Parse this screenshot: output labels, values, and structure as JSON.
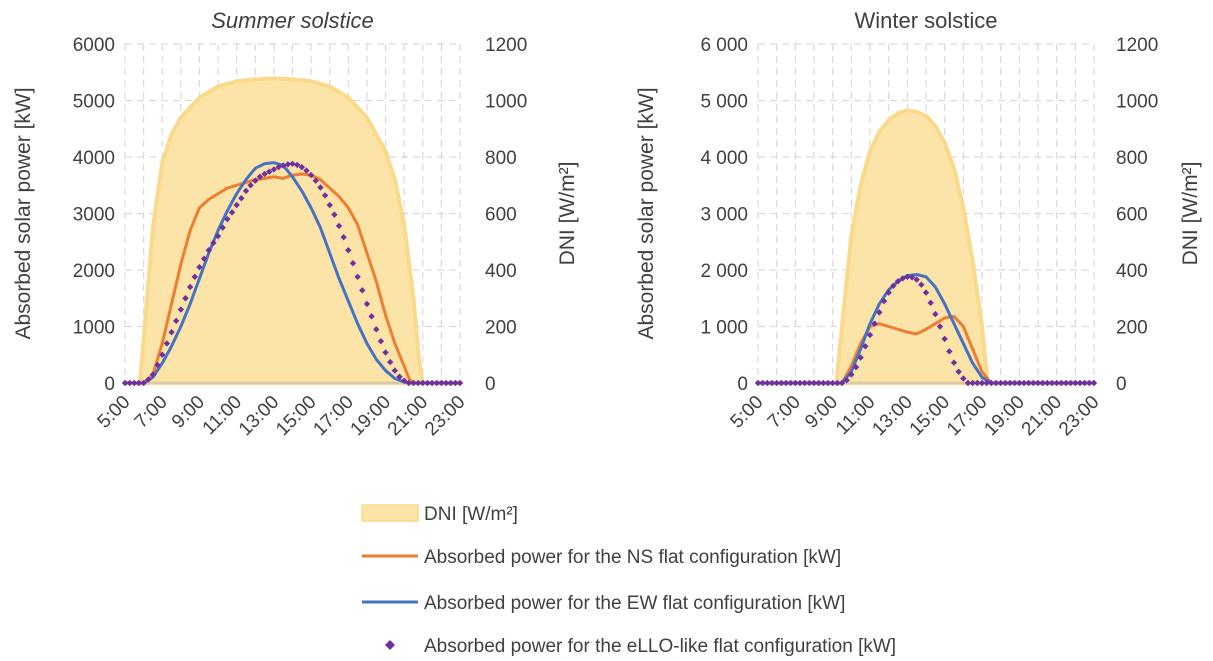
{
  "colors": {
    "dni_fill": "#FCE4A8",
    "dni_line": "#FAD98A",
    "ns": "#ED7D31",
    "ew": "#4472C4",
    "ello": "#7030A0",
    "grid": "#D9D9D9",
    "axis": "#BFBFBF"
  },
  "x_ticks": [
    "5:00",
    "7:00",
    "9:00",
    "11:00",
    "13:00",
    "15:00",
    "17:00",
    "19:00",
    "21:00",
    "23:00"
  ],
  "legend": {
    "items": [
      {
        "key": "dni",
        "label": "DNI [W/m²]"
      },
      {
        "key": "ns",
        "label": "Absorbed power for the NS flat configuration [kW]"
      },
      {
        "key": "ew",
        "label": "Absorbed power for the EW flat configuration [kW]"
      },
      {
        "key": "ello",
        "label": "Absorbed power for the eLLO-like flat configuration [kW]"
      }
    ]
  },
  "chart_data": [
    {
      "type": "line",
      "title": "Summer solstice",
      "title_italic": true,
      "ylabel": "Absorbed solar power [kW]",
      "y2label": "DNI [W/m²]",
      "ylim": [
        0,
        6000
      ],
      "y_ticks": [
        "0",
        "1000",
        "2000",
        "3000",
        "4000",
        "5000",
        "6000"
      ],
      "y2lim": [
        0,
        1200
      ],
      "y2_ticks": [
        "0",
        "200",
        "400",
        "600",
        "800",
        "1000",
        "1200"
      ],
      "xlim": [
        5,
        23
      ],
      "grid": true,
      "series": [
        {
          "name": "DNI [W/m²]",
          "type": "area",
          "axis": "y2",
          "x": [
            5,
            5.5,
            5.8,
            6,
            6.5,
            7,
            7.5,
            8,
            9,
            10,
            11,
            12,
            13,
            14,
            15,
            16,
            17,
            18,
            19,
            19.5,
            20,
            20.5,
            20.8,
            21,
            21.5,
            23
          ],
          "y": [
            0,
            0,
            0,
            150,
            550,
            780,
            880,
            940,
            1010,
            1050,
            1068,
            1075,
            1078,
            1075,
            1068,
            1050,
            1010,
            940,
            820,
            720,
            560,
            300,
            80,
            0,
            0,
            0
          ]
        },
        {
          "name": "Absorbed power for the NS flat configuration [kW]",
          "type": "line",
          "axis": "y",
          "x": [
            5,
            6,
            6.5,
            7,
            7.5,
            8,
            8.5,
            9,
            9.5,
            10,
            10.5,
            11,
            11.5,
            12,
            12.5,
            13,
            13.5,
            14,
            14.5,
            15,
            15.5,
            16,
            16.5,
            17,
            17.5,
            18,
            18.5,
            19,
            19.5,
            20,
            20.3,
            20.6,
            23
          ],
          "y": [
            0,
            0,
            150,
            700,
            1400,
            2100,
            2700,
            3100,
            3250,
            3350,
            3450,
            3500,
            3550,
            3600,
            3620,
            3650,
            3620,
            3680,
            3700,
            3680,
            3600,
            3450,
            3300,
            3100,
            2800,
            2300,
            1800,
            1200,
            700,
            300,
            50,
            0,
            0
          ]
        },
        {
          "name": "Absorbed power for the EW flat configuration [kW]",
          "type": "line",
          "axis": "y",
          "x": [
            5,
            6,
            6.5,
            7,
            7.5,
            8,
            8.5,
            9,
            9.5,
            10,
            10.5,
            11,
            11.5,
            12,
            12.5,
            13,
            13.5,
            14,
            14.5,
            15,
            15.5,
            16,
            16.5,
            17,
            17.5,
            18,
            18.5,
            19,
            19.5,
            20,
            20.3,
            20.5,
            23
          ],
          "y": [
            0,
            0,
            100,
            350,
            650,
            1000,
            1400,
            1850,
            2300,
            2700,
            3050,
            3350,
            3600,
            3800,
            3880,
            3900,
            3850,
            3650,
            3400,
            3100,
            2750,
            2300,
            1850,
            1450,
            1050,
            700,
            420,
            220,
            80,
            20,
            0,
            0,
            0
          ]
        },
        {
          "name": "Absorbed power for the eLLO-like flat configuration [kW]",
          "type": "scatter",
          "axis": "y",
          "x": [
            5,
            5.25,
            5.5,
            5.75,
            6,
            6.25,
            6.5,
            6.75,
            7,
            7.25,
            7.5,
            7.75,
            8,
            8.25,
            8.5,
            8.75,
            9,
            9.25,
            9.5,
            9.75,
            10,
            10.25,
            10.5,
            10.75,
            11,
            11.25,
            11.5,
            11.75,
            12,
            12.25,
            12.5,
            12.75,
            13,
            13.25,
            13.5,
            13.75,
            14,
            14.25,
            14.5,
            14.75,
            15,
            15.25,
            15.5,
            15.75,
            16,
            16.25,
            16.5,
            16.75,
            17,
            17.25,
            17.5,
            17.75,
            18,
            18.25,
            18.5,
            18.75,
            19,
            19.25,
            19.5,
            19.75,
            20,
            20.25,
            20.5,
            20.75,
            21,
            21.25,
            21.5,
            21.75,
            22,
            22.25,
            22.5,
            22.75,
            23
          ],
          "y": [
            0,
            0,
            0,
            0,
            0,
            60,
            150,
            320,
            500,
            700,
            900,
            1100,
            1300,
            1500,
            1700,
            1880,
            2050,
            2200,
            2350,
            2480,
            2600,
            2750,
            2900,
            3020,
            3150,
            3270,
            3400,
            3500,
            3580,
            3650,
            3700,
            3740,
            3780,
            3820,
            3850,
            3870,
            3880,
            3860,
            3820,
            3760,
            3680,
            3580,
            3460,
            3320,
            3150,
            2980,
            2780,
            2580,
            2350,
            2120,
            1880,
            1640,
            1400,
            1180,
            950,
            740,
            540,
            370,
            220,
            110,
            40,
            0,
            0,
            0,
            0,
            0,
            0,
            0,
            0,
            0,
            0,
            0,
            0
          ]
        }
      ]
    },
    {
      "type": "line",
      "title": "Winter solstice",
      "title_italic": false,
      "ylabel": "Absorbed solar power [kW]",
      "y2label": "DNI [W/m²]",
      "ylim": [
        0,
        6000
      ],
      "y_ticks": [
        "0",
        "1 000",
        "2 000",
        "3 000",
        "4 000",
        "5 000",
        "6 000"
      ],
      "y2lim": [
        0,
        1200
      ],
      "y2_ticks": [
        "0",
        "200",
        "400",
        "600",
        "800",
        "1000",
        "1200"
      ],
      "xlim": [
        5,
        23
      ],
      "grid": true,
      "series": [
        {
          "name": "DNI [W/m²]",
          "type": "area",
          "axis": "y2",
          "x": [
            5,
            9,
            9.2,
            9.5,
            10,
            10.5,
            11,
            11.5,
            12,
            12.5,
            13,
            13.5,
            14,
            14.5,
            15,
            15.5,
            16,
            16.5,
            17,
            17.3,
            17.5,
            23
          ],
          "y": [
            0,
            0,
            0,
            200,
            520,
            700,
            820,
            890,
            930,
            955,
            965,
            960,
            945,
            910,
            850,
            760,
            620,
            430,
            200,
            0,
            0,
            0
          ]
        },
        {
          "name": "Absorbed power for the NS flat configuration [kW]",
          "type": "line",
          "axis": "y",
          "x": [
            5,
            9.5,
            10,
            10.5,
            11,
            11.5,
            12,
            12.5,
            13,
            13.5,
            14,
            14.5,
            15,
            15.5,
            16,
            16.5,
            17,
            17.5,
            18,
            23
          ],
          "y": [
            0,
            0,
            300,
            700,
            1000,
            1050,
            1000,
            950,
            900,
            870,
            950,
            1050,
            1150,
            1180,
            1000,
            600,
            200,
            0,
            0,
            0
          ]
        },
        {
          "name": "Absorbed power for the EW flat configuration [kW]",
          "type": "line",
          "axis": "y",
          "x": [
            5,
            9.5,
            10,
            10.5,
            11,
            11.5,
            12,
            12.5,
            13,
            13.5,
            14,
            14.5,
            15,
            15.5,
            16,
            16.5,
            17,
            17.5,
            18,
            23
          ],
          "y": [
            0,
            0,
            200,
            600,
            1050,
            1400,
            1650,
            1800,
            1900,
            1920,
            1880,
            1700,
            1400,
            1050,
            700,
            350,
            100,
            0,
            0,
            0
          ]
        },
        {
          "name": "Absorbed power for the eLLO-like flat configuration [kW]",
          "type": "scatter",
          "axis": "y",
          "x": [
            5,
            5.25,
            5.5,
            5.75,
            6,
            6.25,
            6.5,
            6.75,
            7,
            7.25,
            7.5,
            7.75,
            8,
            8.25,
            8.5,
            8.75,
            9,
            9.25,
            9.5,
            9.75,
            10,
            10.25,
            10.5,
            10.75,
            11,
            11.25,
            11.5,
            11.75,
            12,
            12.25,
            12.5,
            12.75,
            13,
            13.25,
            13.5,
            13.75,
            14,
            14.25,
            14.5,
            14.75,
            15,
            15.25,
            15.5,
            15.75,
            16,
            16.25,
            16.5,
            16.75,
            17,
            17.25,
            17.5,
            17.75,
            18,
            18.25,
            18.5,
            18.75,
            19,
            19.25,
            19.5,
            19.75,
            20,
            20.25,
            20.5,
            20.75,
            21,
            21.25,
            21.5,
            21.75,
            22,
            22.25,
            22.5,
            22.75,
            23
          ],
          "y": [
            0,
            0,
            0,
            0,
            0,
            0,
            0,
            0,
            0,
            0,
            0,
            0,
            0,
            0,
            0,
            0,
            0,
            0,
            0,
            50,
            150,
            280,
            450,
            650,
            850,
            1050,
            1250,
            1450,
            1600,
            1720,
            1800,
            1850,
            1880,
            1870,
            1830,
            1740,
            1600,
            1420,
            1220,
            1000,
            780,
            560,
            360,
            200,
            80,
            0,
            0,
            0,
            0,
            0,
            0,
            0,
            0,
            0,
            0,
            0,
            0,
            0,
            0,
            0,
            0,
            0,
            0,
            0,
            0,
            0,
            0,
            0,
            0,
            0,
            0,
            0,
            0
          ]
        }
      ]
    }
  ]
}
